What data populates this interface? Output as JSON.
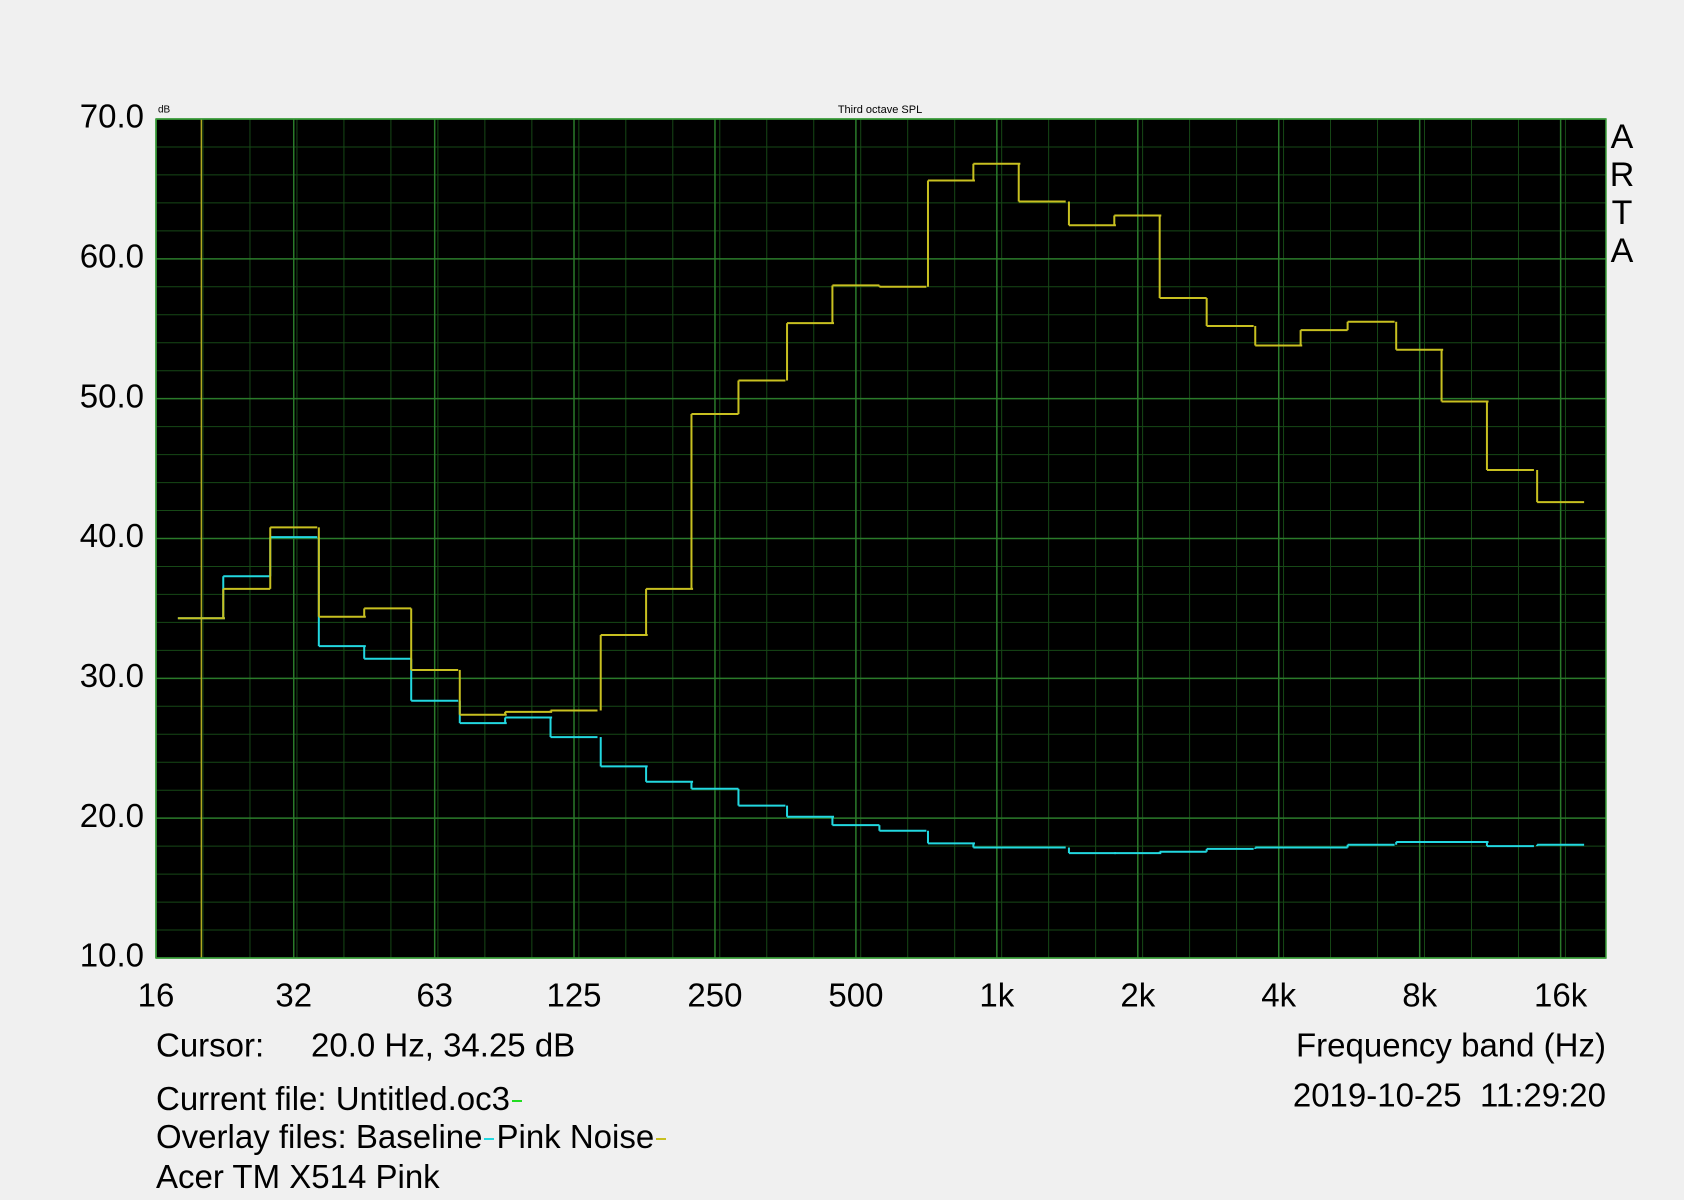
{
  "chart_data": {
    "type": "step",
    "title": "Third octave SPL",
    "y_unit": "dB",
    "brand": "ARTA",
    "x_label": "Frequency band (Hz)",
    "cursor_label": "Cursor:",
    "cursor_text": "20.0 Hz, 34.25 dB",
    "current_file": "Current file: Untitled.oc3",
    "current_color": "#22dd22",
    "overlay_label": "Overlay files:",
    "note": "Acer TM X514 Pink",
    "timestamp": "2019-10-25  11:29:20",
    "log_x": true,
    "grid": true,
    "x": [
      20,
      25,
      31.5,
      40,
      50,
      63,
      80,
      100,
      125,
      160,
      200,
      250,
      315,
      400,
      500,
      630,
      800,
      1000,
      1250,
      1600,
      2000,
      2500,
      3150,
      4000,
      5000,
      6300,
      8000,
      10000,
      12500,
      16000
    ],
    "series": [
      {
        "name": "Baseline",
        "color": "#22d8e0",
        "values": [
          34.3,
          37.3,
          40.1,
          32.3,
          31.4,
          28.4,
          26.8,
          27.2,
          25.8,
          23.7,
          22.6,
          22.1,
          20.9,
          20.1,
          19.5,
          19.1,
          18.2,
          17.9,
          17.9,
          17.5,
          17.5,
          17.6,
          17.8,
          17.9,
          17.9,
          18.1,
          18.3,
          18.3,
          18.0,
          18.1
        ]
      },
      {
        "name": "Pink Noise",
        "color": "#c8c020",
        "values": [
          34.3,
          36.4,
          40.8,
          34.4,
          35.0,
          30.6,
          27.4,
          27.6,
          27.7,
          33.1,
          36.4,
          48.9,
          51.3,
          55.4,
          58.1,
          58.0,
          65.6,
          66.8,
          64.1,
          62.4,
          63.1,
          57.2,
          55.2,
          53.8,
          54.9,
          55.5,
          53.5,
          49.8,
          44.9,
          42.6
        ]
      }
    ],
    "xlim": [
      16,
      20000
    ],
    "xticks": [
      16,
      {
        "value": 31.5,
        "label": "32"
      },
      63,
      125,
      250,
      500,
      {
        "value": 1000,
        "label": "1k"
      },
      {
        "value": 2000,
        "label": "2k"
      },
      {
        "value": 4000,
        "label": "4k"
      },
      {
        "value": 8000,
        "label": "8k"
      },
      {
        "value": 16000,
        "label": "16k"
      }
    ],
    "ylim": [
      10,
      70
    ],
    "yticks": [
      {
        "value": 10,
        "label": "10.0"
      },
      {
        "value": 20,
        "label": "20.0"
      },
      {
        "value": 30,
        "label": "30.0"
      },
      {
        "value": 40,
        "label": "40.0"
      },
      {
        "value": 50,
        "label": "50.0"
      },
      {
        "value": 60,
        "label": "60.0"
      },
      {
        "value": 70,
        "label": "70.0"
      }
    ]
  }
}
